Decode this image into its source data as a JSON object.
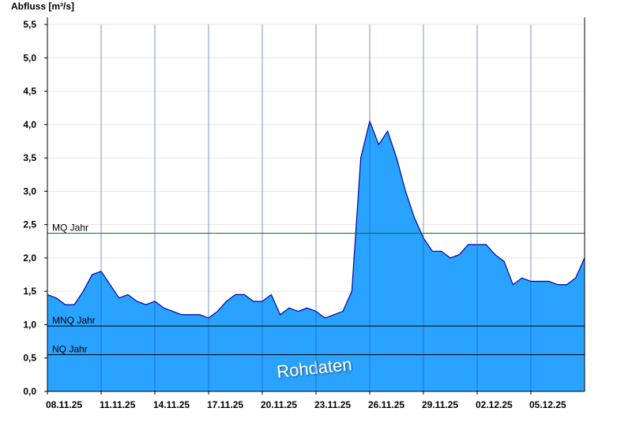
{
  "chart_data": {
    "type": "area",
    "ylabel": "Abfluss [m³/s]",
    "categories": [
      "08.11.25",
      null,
      null,
      null,
      null,
      null,
      "11.11.25",
      null,
      null,
      null,
      null,
      null,
      "14.11.25",
      null,
      null,
      null,
      null,
      null,
      "17.11.25",
      null,
      null,
      null,
      null,
      null,
      "20.11.25",
      null,
      null,
      null,
      null,
      null,
      "23.11.25",
      null,
      null,
      null,
      null,
      null,
      "26.11.25",
      null,
      null,
      null,
      null,
      null,
      "29.11.25",
      null,
      null,
      null,
      null,
      null,
      "02.12.25",
      null,
      null,
      null,
      null,
      null,
      "05.12.25",
      null,
      null,
      null,
      null,
      null,
      null
    ],
    "series": [
      {
        "name": "Rohdaten",
        "color": "#29a3ff",
        "line_color": "#0000aa",
        "values": [
          1.45,
          1.4,
          1.3,
          1.3,
          1.5,
          1.75,
          1.8,
          1.6,
          1.4,
          1.45,
          1.35,
          1.3,
          1.35,
          1.25,
          1.2,
          1.15,
          1.15,
          1.15,
          1.1,
          1.2,
          1.35,
          1.45,
          1.45,
          1.35,
          1.35,
          1.45,
          1.15,
          1.25,
          1.2,
          1.25,
          1.2,
          1.1,
          1.15,
          1.2,
          1.5,
          3.5,
          4.05,
          3.7,
          3.9,
          3.5,
          3.0,
          2.6,
          2.3,
          2.1,
          2.1,
          2.0,
          2.05,
          2.2,
          2.2,
          2.2,
          2.05,
          1.95,
          1.6,
          1.7,
          1.65,
          1.65,
          1.65,
          1.6,
          1.6,
          1.7,
          2.0
        ]
      }
    ],
    "reference_lines": [
      {
        "label": "MQ Jahr",
        "value": 2.37,
        "color": "#007000"
      },
      {
        "label": "MNQ Jahr",
        "value": 0.98,
        "color": "#000000"
      },
      {
        "label": "NQ Jahr",
        "value": 0.55,
        "color": "#000000"
      }
    ],
    "ylim": [
      0,
      5.5
    ],
    "yticks": [
      {
        "value": 0,
        "label": "0,0"
      },
      {
        "value": 0.5,
        "label": "0,5"
      },
      {
        "value": 1,
        "label": "1,0"
      },
      {
        "value": 1.5,
        "label": "1,5"
      },
      {
        "value": 2,
        "label": "2,0"
      },
      {
        "value": 2.5,
        "label": "2,5"
      },
      {
        "value": 3,
        "label": "3,0"
      },
      {
        "value": 3.5,
        "label": "3,5"
      },
      {
        "value": 4,
        "label": "4,0"
      },
      {
        "value": 4.5,
        "label": "4,5"
      },
      {
        "value": 5,
        "label": "5,0"
      },
      {
        "value": 5.5,
        "label": "5,5"
      }
    ],
    "grid": true
  }
}
